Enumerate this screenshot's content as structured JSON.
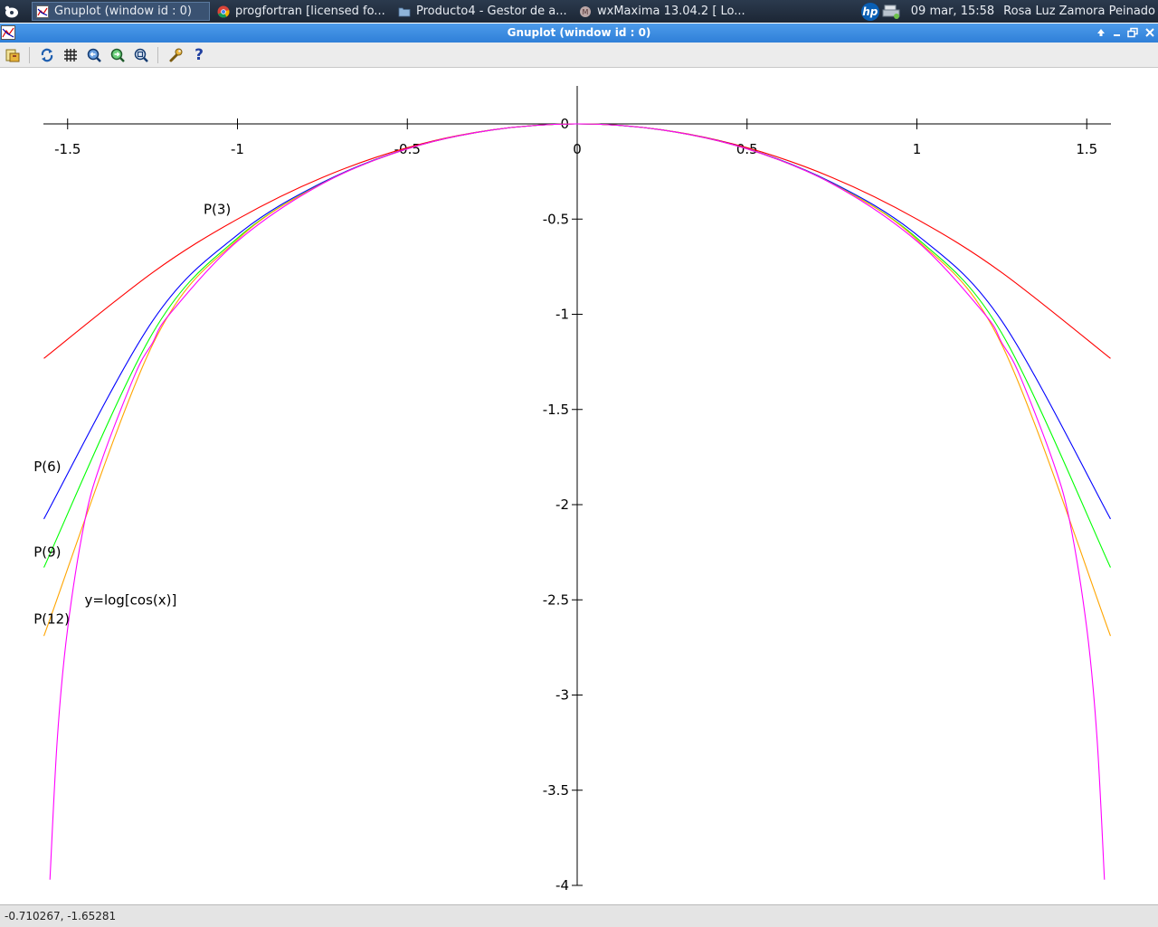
{
  "taskbar": {
    "tasks": [
      {
        "label": "Gnuplot (window id : 0)",
        "icon": "gnuplot-icon",
        "active": true
      },
      {
        "label": "progfortran [licensed fo...",
        "icon": "chrome-icon",
        "active": false
      },
      {
        "label": "Producto4 - Gestor de a...",
        "icon": "folder-icon",
        "active": false
      },
      {
        "label": "wxMaxima 13.04.2  [ Lo...",
        "icon": "wxmaxima-icon",
        "active": false
      }
    ],
    "tray_logo": "hp",
    "clock": "09 mar, 15:58",
    "user": "Rosa Luz Zamora Peinado"
  },
  "window": {
    "title": "Gnuplot (window id : 0)",
    "controls": [
      "up-arrow-icon",
      "minimize-icon",
      "maximize-icon",
      "close-icon"
    ]
  },
  "toolbar": {
    "buttons": [
      "export-icon",
      "replot-icon",
      "grid-icon",
      "zoom-previous-icon",
      "zoom-next-icon",
      "autoscale-icon",
      "options-icon",
      "help-icon"
    ],
    "help_glyph": "?"
  },
  "status": {
    "coordinates": "-0.710267, -1.65281"
  },
  "chart_data": {
    "type": "line",
    "title": "",
    "xlabel": "",
    "ylabel": "",
    "xlim": [
      -1.57,
      1.57
    ],
    "ylim": [
      -4,
      0.2
    ],
    "xticks": [
      -1.5,
      -1,
      -0.5,
      0,
      0.5,
      1,
      1.5
    ],
    "xtick_labels": [
      "-1.5",
      "-1",
      "-0.5",
      "0",
      "0.5",
      "1",
      "1.5"
    ],
    "yticks": [
      0,
      -0.5,
      -1,
      -1.5,
      -2,
      -2.5,
      -3,
      -3.5,
      -4
    ],
    "ytick_labels": [
      "0",
      "-0.5",
      "-1",
      "-1.5",
      "-2",
      "-2.5",
      "-3",
      "-3.5",
      "-4"
    ],
    "axes_through_origin": true,
    "grid": false,
    "series": [
      {
        "name": "P(3)",
        "color": "#ff0000",
        "x": [
          -1.57,
          -1.25,
          -1.0,
          -0.75,
          -0.5,
          -0.25,
          0,
          0.25,
          0.5,
          0.75,
          1.0,
          1.25,
          1.57
        ],
        "y": [
          -1.232,
          -0.781,
          -0.5,
          -0.281,
          -0.125,
          -0.031,
          0,
          -0.031,
          -0.125,
          -0.281,
          -0.5,
          -0.781,
          -1.232
        ]
      },
      {
        "name": "P(6)",
        "color": "#0000ff",
        "x": [
          -1.57,
          -1.25,
          -1.0,
          -0.75,
          -0.5,
          -0.25,
          0,
          0.25,
          0.5,
          0.75,
          1.0,
          1.25,
          1.57
        ],
        "y": [
          -2.075,
          -1.035,
          -0.583,
          -0.308,
          -0.13,
          -0.032,
          0,
          -0.032,
          -0.13,
          -0.308,
          -0.583,
          -1.035,
          -2.075
        ]
      },
      {
        "name": "P(9)",
        "color": "#00ff00",
        "x": [
          -1.57,
          -1.25,
          -1.0,
          -0.75,
          -0.5,
          -0.25,
          0,
          0.25,
          0.5,
          0.75,
          1.0,
          1.25,
          1.57
        ],
        "y": [
          -2.33,
          -1.1,
          -0.6,
          -0.312,
          -0.131,
          -0.032,
          0,
          -0.032,
          -0.131,
          -0.312,
          -0.6,
          -1.1,
          -2.33
        ]
      },
      {
        "name": "P(12)",
        "color": "#ffa500",
        "x": [
          -1.57,
          -1.25,
          -1.0,
          -0.75,
          -0.5,
          -0.25,
          0,
          0.25,
          0.5,
          0.75,
          1.0,
          1.25,
          1.57
        ],
        "y": [
          -2.69,
          -1.16,
          -0.608,
          -0.313,
          -0.131,
          -0.032,
          0,
          -0.032,
          -0.131,
          -0.313,
          -0.608,
          -1.16,
          -2.69
        ]
      },
      {
        "name": "y=log[cos(x)]",
        "color": "#ff00ff",
        "x": [
          -1.552,
          -1.53,
          -1.5,
          -1.45,
          -1.4,
          -1.3,
          -1.25,
          -1.2,
          -1.0,
          -0.75,
          -0.5,
          -0.25,
          0,
          0.25,
          0.5,
          0.75,
          1.0,
          1.2,
          1.25,
          1.3,
          1.4,
          1.45,
          1.5,
          1.53,
          1.552
        ],
        "y": [
          -3.97,
          -3.22,
          -2.65,
          -2.09,
          -1.77,
          -1.31,
          -1.15,
          -1.0,
          -0.616,
          -0.314,
          -0.131,
          -0.032,
          0,
          -0.032,
          -0.131,
          -0.314,
          -0.616,
          -1.0,
          -1.15,
          -1.31,
          -1.77,
          -2.09,
          -2.65,
          -3.22,
          -3.97
        ]
      }
    ],
    "annotations": [
      {
        "text": "P(3)",
        "x": -1.1,
        "y": -0.45
      },
      {
        "text": "P(6)",
        "x": -1.6,
        "y": -1.8
      },
      {
        "text": "P(9)",
        "x": -1.6,
        "y": -2.25
      },
      {
        "text": "P(12)",
        "x": -1.6,
        "y": -2.6
      },
      {
        "text": "y=log[cos(x)]",
        "x": -1.45,
        "y": -2.5
      }
    ]
  }
}
